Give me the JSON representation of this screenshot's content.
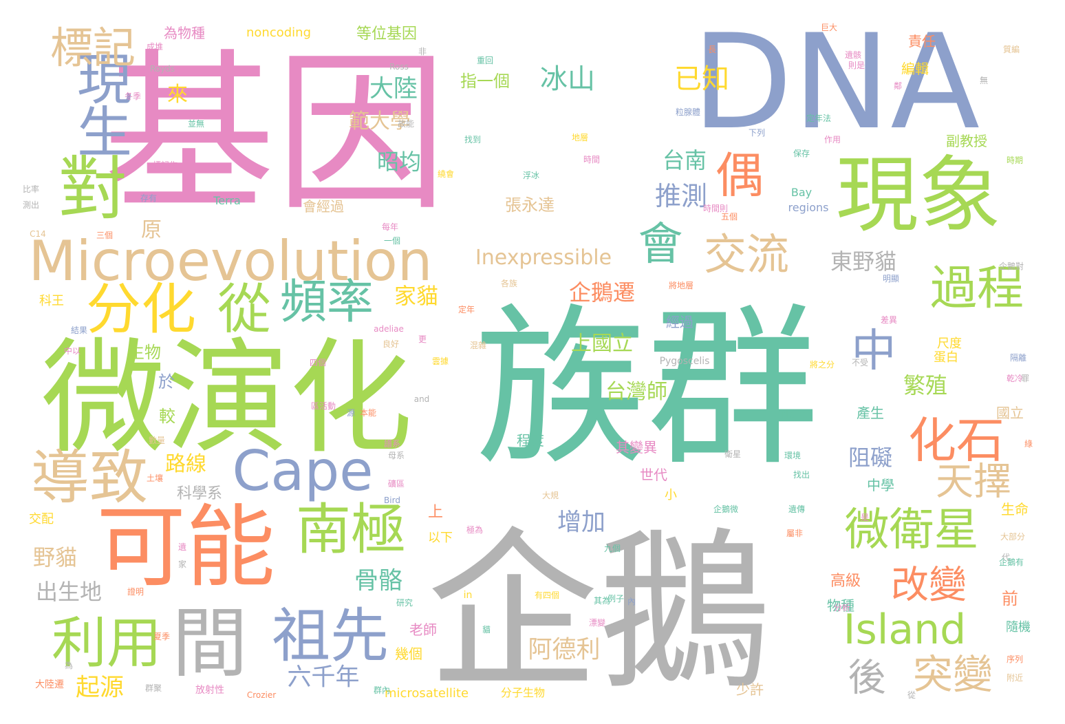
{
  "palette": {
    "green": "#66c2a5",
    "orange": "#fc8d62",
    "blue": "#8da0cb",
    "pink": "#e78ac3",
    "lime": "#a6d854",
    "yellow": "#ffd92f",
    "tan": "#e5c494",
    "gray": "#b3b3b3"
  },
  "words": [
    {
      "text": "基因",
      "color": "pink"
    },
    {
      "text": "族群",
      "color": "green"
    },
    {
      "text": "DNA",
      "color": "blue"
    },
    {
      "text": "企鵝",
      "color": "gray"
    },
    {
      "text": "微演化",
      "color": "lime"
    },
    {
      "text": "現象",
      "color": "lime"
    },
    {
      "text": "可能",
      "color": "orange"
    },
    {
      "text": "對",
      "color": "lime"
    },
    {
      "text": "間",
      "color": "gray"
    },
    {
      "text": "Microevolution",
      "color": "tan"
    },
    {
      "text": "現生",
      "color": "blue"
    },
    {
      "text": "標記",
      "color": "tan"
    },
    {
      "text": "分化",
      "color": "yellow"
    },
    {
      "text": "從",
      "color": "lime"
    },
    {
      "text": "導致",
      "color": "tan"
    },
    {
      "text": "利用",
      "color": "lime"
    },
    {
      "text": "祖先",
      "color": "blue"
    },
    {
      "text": "南極",
      "color": "lime"
    },
    {
      "text": "Cape",
      "color": "blue"
    },
    {
      "text": "頻率",
      "color": "green"
    },
    {
      "text": "會",
      "color": "green"
    },
    {
      "text": "偶",
      "color": "orange"
    },
    {
      "text": "交流",
      "color": "tan"
    },
    {
      "text": "過程",
      "color": "lime"
    },
    {
      "text": "化石",
      "color": "orange"
    },
    {
      "text": "中",
      "color": "blue"
    },
    {
      "text": "天擇",
      "color": "tan"
    },
    {
      "text": "微衛星",
      "color": "lime"
    },
    {
      "text": "改變",
      "color": "orange"
    },
    {
      "text": "Island",
      "color": "lime"
    },
    {
      "text": "突變",
      "color": "tan"
    },
    {
      "text": "後",
      "color": "gray"
    },
    {
      "text": "已知",
      "color": "yellow"
    },
    {
      "text": "冰山",
      "color": "green"
    },
    {
      "text": "大陸",
      "color": "green"
    },
    {
      "text": "範大學",
      "color": "tan"
    },
    {
      "text": "昭均",
      "color": "green"
    },
    {
      "text": "台南",
      "color": "green"
    },
    {
      "text": "推測",
      "color": "blue"
    },
    {
      "text": "Inexpressible",
      "color": "tan"
    },
    {
      "text": "東野貓",
      "color": "gray"
    },
    {
      "text": "企鵝遷",
      "color": "orange"
    },
    {
      "text": "家貓",
      "color": "yellow"
    },
    {
      "text": "繁殖",
      "color": "lime"
    },
    {
      "text": "阻礙",
      "color": "blue"
    },
    {
      "text": "上國立",
      "color": "lime"
    },
    {
      "text": "台灣師",
      "color": "lime"
    },
    {
      "text": "增加",
      "color": "blue"
    },
    {
      "text": "骨骼",
      "color": "green"
    },
    {
      "text": "阿德利",
      "color": "tan"
    },
    {
      "text": "六千年",
      "color": "blue"
    },
    {
      "text": "起源",
      "color": "yellow"
    },
    {
      "text": "野貓",
      "color": "tan"
    },
    {
      "text": "出生地",
      "color": "gray"
    },
    {
      "text": "路線",
      "color": "yellow"
    },
    {
      "text": "科學系",
      "color": "gray"
    },
    {
      "text": "原",
      "color": "tan"
    },
    {
      "text": "來",
      "color": "yellow"
    },
    {
      "text": "指一個",
      "color": "lime"
    },
    {
      "text": "張永達",
      "color": "tan"
    },
    {
      "text": "等位基因",
      "color": "lime"
    },
    {
      "text": "noncoding",
      "color": "yellow"
    },
    {
      "text": "為物種",
      "color": "pink"
    },
    {
      "text": "責任",
      "color": "orange"
    },
    {
      "text": "編輯",
      "color": "yellow"
    },
    {
      "text": "副教授",
      "color": "lime"
    },
    {
      "text": "生物",
      "color": "lime"
    },
    {
      "text": "於",
      "color": "blue"
    },
    {
      "text": "較",
      "color": "lime"
    },
    {
      "text": "其變異",
      "color": "pink"
    },
    {
      "text": "世代",
      "color": "pink"
    },
    {
      "text": "經過",
      "color": "blue"
    },
    {
      "text": "程度",
      "color": "green"
    },
    {
      "text": "老師",
      "color": "pink"
    },
    {
      "text": "幾個",
      "color": "yellow"
    },
    {
      "text": "上",
      "color": "orange"
    },
    {
      "text": "以下",
      "color": "yellow"
    },
    {
      "text": "小",
      "color": "yellow"
    },
    {
      "text": "尺度",
      "color": "yellow"
    },
    {
      "text": "蛋白",
      "color": "yellow"
    },
    {
      "text": "國立",
      "color": "tan"
    },
    {
      "text": "產生",
      "color": "green"
    },
    {
      "text": "中學",
      "color": "green"
    },
    {
      "text": "生命",
      "color": "yellow"
    },
    {
      "text": "前",
      "color": "orange"
    },
    {
      "text": "高級",
      "color": "orange"
    },
    {
      "text": "物種",
      "color": "green"
    },
    {
      "text": "隨機",
      "color": "green"
    },
    {
      "text": "少許",
      "color": "tan"
    },
    {
      "text": "科王",
      "color": "yellow"
    },
    {
      "text": "交配",
      "color": "yellow"
    },
    {
      "text": "Terra",
      "color": "green"
    },
    {
      "text": "Bay",
      "color": "green"
    },
    {
      "text": "regions",
      "color": "blue"
    },
    {
      "text": "會經過",
      "color": "tan"
    },
    {
      "text": "microsatellite",
      "color": "yellow"
    },
    {
      "text": "分子生物",
      "color": "yellow"
    },
    {
      "text": "大陸遷",
      "color": "orange"
    },
    {
      "text": "放射性",
      "color": "pink"
    },
    {
      "text": "Crozier",
      "color": "orange"
    },
    {
      "text": "Pygoscelis",
      "color": "gray"
    },
    {
      "text": "Nova",
      "color": "green"
    },
    {
      "text": "Royds",
      "color": "gray"
    },
    {
      "text": "Ross",
      "color": "gray"
    },
    {
      "text": "adeliae",
      "color": "pink"
    },
    {
      "text": "and",
      "color": "gray"
    },
    {
      "text": "in",
      "color": "yellow"
    },
    {
      "text": "Bird",
      "color": "blue"
    },
    {
      "text": "C14",
      "color": "tan"
    },
    {
      "text": "比率",
      "color": "gray"
    },
    {
      "text": "測出",
      "color": "gray"
    },
    {
      "text": "存有",
      "color": "blue"
    },
    {
      "text": "三個",
      "color": "orange"
    },
    {
      "text": "成堆",
      "color": "pink"
    },
    {
      "text": "非",
      "color": "gray"
    },
    {
      "text": "重回",
      "color": "green"
    },
    {
      "text": "找到",
      "color": "green"
    },
    {
      "text": "浮冰",
      "color": "green"
    },
    {
      "text": "時間",
      "color": "pink"
    },
    {
      "text": "地層",
      "color": "yellow"
    },
    {
      "text": "巨大",
      "color": "orange"
    },
    {
      "text": "遺骸",
      "color": "pink"
    },
    {
      "text": "則是",
      "color": "pink"
    },
    {
      "text": "質編",
      "color": "tan"
    },
    {
      "text": "時期",
      "color": "lime"
    },
    {
      "text": "作用",
      "color": "pink"
    },
    {
      "text": "保存",
      "color": "green"
    },
    {
      "text": "定年法",
      "color": "green"
    },
    {
      "text": "粒腺體",
      "color": "blue"
    },
    {
      "text": "企鵝對",
      "color": "gray"
    },
    {
      "text": "不受",
      "color": "gray"
    },
    {
      "text": "將之分",
      "color": "yellow"
    },
    {
      "text": "環境",
      "color": "green"
    },
    {
      "text": "隔離",
      "color": "blue"
    },
    {
      "text": "乾冷",
      "color": "pink"
    },
    {
      "text": "遺傳",
      "color": "green"
    },
    {
      "text": "企鵝微",
      "color": "green"
    },
    {
      "text": "大部分",
      "color": "tan"
    },
    {
      "text": "企鵝有",
      "color": "green"
    },
    {
      "text": "序列",
      "color": "orange"
    },
    {
      "text": "附近",
      "color": "tan"
    },
    {
      "text": "屬非",
      "color": "orange"
    },
    {
      "text": "九個",
      "color": "green"
    },
    {
      "text": "例子",
      "color": "green"
    },
    {
      "text": "其為",
      "color": "green"
    },
    {
      "text": "漂變",
      "color": "pink"
    },
    {
      "text": "研究",
      "color": "green"
    },
    {
      "text": "有四個",
      "color": "yellow"
    },
    {
      "text": "分析",
      "color": "pink"
    },
    {
      "text": "群聚",
      "color": "gray"
    },
    {
      "text": "群內",
      "color": "green"
    },
    {
      "text": "夏季",
      "color": "orange"
    },
    {
      "text": "證明",
      "color": "orange"
    },
    {
      "text": "冬季",
      "color": "pink"
    },
    {
      "text": "並無",
      "color": "green"
    },
    {
      "text": "故能",
      "color": "gray"
    },
    {
      "text": "標記作",
      "color": "pink"
    },
    {
      "text": "繞會",
      "color": "yellow"
    },
    {
      "text": "時間則",
      "color": "pink"
    },
    {
      "text": "五個",
      "color": "orange"
    },
    {
      "text": "一個",
      "color": "green"
    },
    {
      "text": "每年",
      "color": "pink"
    },
    {
      "text": "將地層",
      "color": "orange"
    },
    {
      "text": "各族",
      "color": "tan"
    },
    {
      "text": "定年",
      "color": "orange"
    },
    {
      "text": "混雜",
      "color": "tan"
    },
    {
      "text": "明顯",
      "color": "blue"
    },
    {
      "text": "差異",
      "color": "pink"
    },
    {
      "text": "良好",
      "color": "tan"
    },
    {
      "text": "中以",
      "color": "pink"
    },
    {
      "text": "結果",
      "color": "blue"
    },
    {
      "text": "雲據",
      "color": "yellow"
    },
    {
      "text": "四個",
      "color": "pink"
    },
    {
      "text": "數量",
      "color": "tan"
    },
    {
      "text": "區活動",
      "color": "pink"
    },
    {
      "text": "本能",
      "color": "orange"
    },
    {
      "text": "譜系",
      "color": "pink"
    },
    {
      "text": "母系",
      "color": "gray"
    },
    {
      "text": "衛星",
      "color": "gray"
    },
    {
      "text": "找出",
      "color": "green"
    },
    {
      "text": "大規",
      "color": "tan"
    },
    {
      "text": "極為",
      "color": "pink"
    },
    {
      "text": "土壤",
      "color": "orange"
    },
    {
      "text": "礦區",
      "color": "pink"
    },
    {
      "text": "下列",
      "color": "blue"
    },
    {
      "text": "長",
      "color": "orange"
    },
    {
      "text": "無",
      "color": "gray"
    },
    {
      "text": "遺",
      "color": "pink"
    },
    {
      "text": "家",
      "color": "gray"
    },
    {
      "text": "內",
      "color": "blue"
    },
    {
      "text": "代",
      "color": "gray"
    },
    {
      "text": "貓",
      "color": "green"
    },
    {
      "text": "從",
      "color": "gray"
    },
    {
      "text": "為",
      "color": "gray"
    },
    {
      "text": "更",
      "color": "pink"
    },
    {
      "text": "是",
      "color": "pink"
    },
    {
      "text": "源",
      "color": "blue"
    },
    {
      "text": "罪",
      "color": "gray"
    },
    {
      "text": "綠",
      "color": "orange"
    },
    {
      "text": "鄰",
      "color": "pink"
    },
    {
      "text": "還",
      "color": "pink"
    }
  ]
}
